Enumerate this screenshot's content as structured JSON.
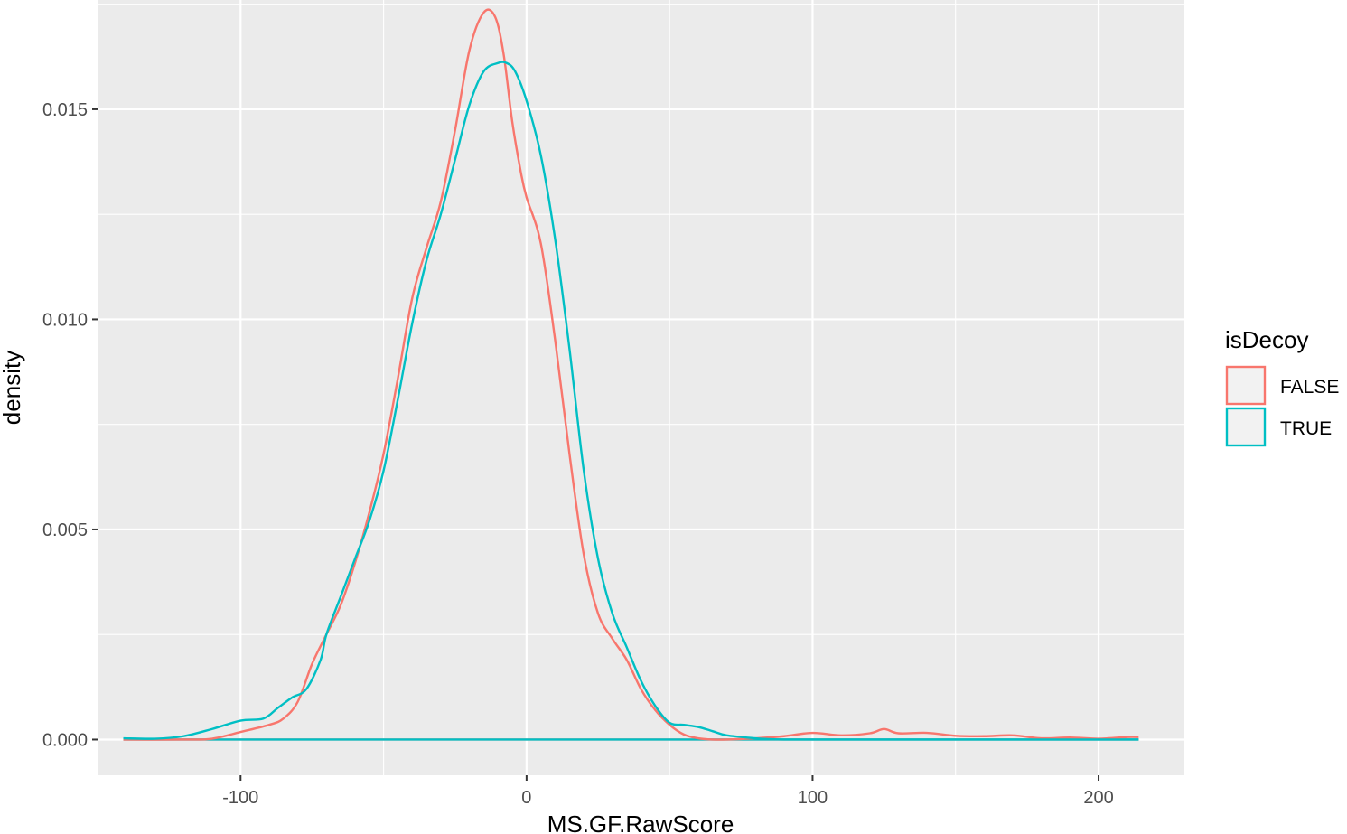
{
  "chart_data": {
    "type": "line",
    "subtype": "density",
    "xlabel": "MS.GF.RawScore",
    "ylabel": "density",
    "xlim": [
      -150,
      230
    ],
    "ylim": [
      -0.00085,
      0.0176
    ],
    "x_ticks": [
      -100,
      0,
      100,
      200
    ],
    "x_tick_labels": [
      "-100",
      "0",
      "100",
      "200"
    ],
    "y_ticks": [
      0,
      0.005,
      0.01,
      0.015
    ],
    "y_tick_labels": [
      "0.000",
      "0.005",
      "0.010",
      "0.015"
    ],
    "grid": true,
    "legend": {
      "title": "isDecoy",
      "position": "right"
    },
    "series": [
      {
        "name": "FALSE",
        "color": "#F8766D",
        "x": [
          -141,
          -120,
          -110,
          -100,
          -90,
          -85,
          -80,
          -75,
          -70,
          -65,
          -60,
          -55,
          -50,
          -45,
          -40,
          -35,
          -30,
          -25,
          -20,
          -15,
          -11,
          -8,
          -5,
          -2,
          0,
          5,
          10,
          15,
          20,
          25,
          30,
          35,
          40,
          45,
          50,
          55,
          60,
          65,
          70,
          80,
          90,
          100,
          110,
          120,
          125,
          130,
          140,
          150,
          160,
          170,
          180,
          190,
          200,
          210,
          214
        ],
        "values": [
          0,
          0,
          2e-05,
          0.00018,
          0.00035,
          0.0005,
          0.0009,
          0.0018,
          0.0025,
          0.0032,
          0.0042,
          0.0054,
          0.0068,
          0.0086,
          0.0105,
          0.0117,
          0.0128,
          0.0145,
          0.0164,
          0.0173,
          0.0172,
          0.0163,
          0.0147,
          0.0135,
          0.0129,
          0.0118,
          0.0095,
          0.0068,
          0.0044,
          0.003,
          0.0024,
          0.0019,
          0.0012,
          0.0007,
          0.00035,
          0.00012,
          3e-05,
          0,
          0,
          3e-05,
          8e-05,
          0.00016,
          0.0001,
          0.00015,
          0.00025,
          0.00015,
          0.00016,
          9e-05,
          8e-05,
          0.0001,
          3e-05,
          5e-05,
          2e-05,
          6e-05,
          6e-05
        ]
      },
      {
        "name": "TRUE",
        "color": "#00BFC4",
        "x": [
          -141,
          -130,
          -120,
          -110,
          -100,
          -92,
          -87,
          -82,
          -77,
          -72,
          -70,
          -65,
          -60,
          -55,
          -50,
          -45,
          -40,
          -35,
          -30,
          -25,
          -20,
          -15,
          -10,
          -7,
          -4,
          0,
          5,
          10,
          15,
          20,
          25,
          30,
          35,
          40,
          45,
          50,
          55,
          60,
          65,
          70,
          80,
          85,
          90,
          100,
          120,
          150,
          200,
          214
        ],
        "values": [
          3e-05,
          2e-05,
          8e-05,
          0.00025,
          0.00045,
          0.0005,
          0.00075,
          0.001,
          0.0012,
          0.0019,
          0.0025,
          0.0034,
          0.0043,
          0.0052,
          0.0064,
          0.0081,
          0.0099,
          0.0114,
          0.0125,
          0.0138,
          0.0151,
          0.0159,
          0.0161,
          0.0161,
          0.0159,
          0.0152,
          0.0139,
          0.0119,
          0.0093,
          0.0064,
          0.0043,
          0.003,
          0.0022,
          0.0014,
          0.0008,
          0.0004,
          0.00035,
          0.0003,
          0.0002,
          0.0001,
          3e-05,
          1e-05,
          0,
          0,
          0,
          0,
          0,
          0
        ]
      }
    ]
  }
}
